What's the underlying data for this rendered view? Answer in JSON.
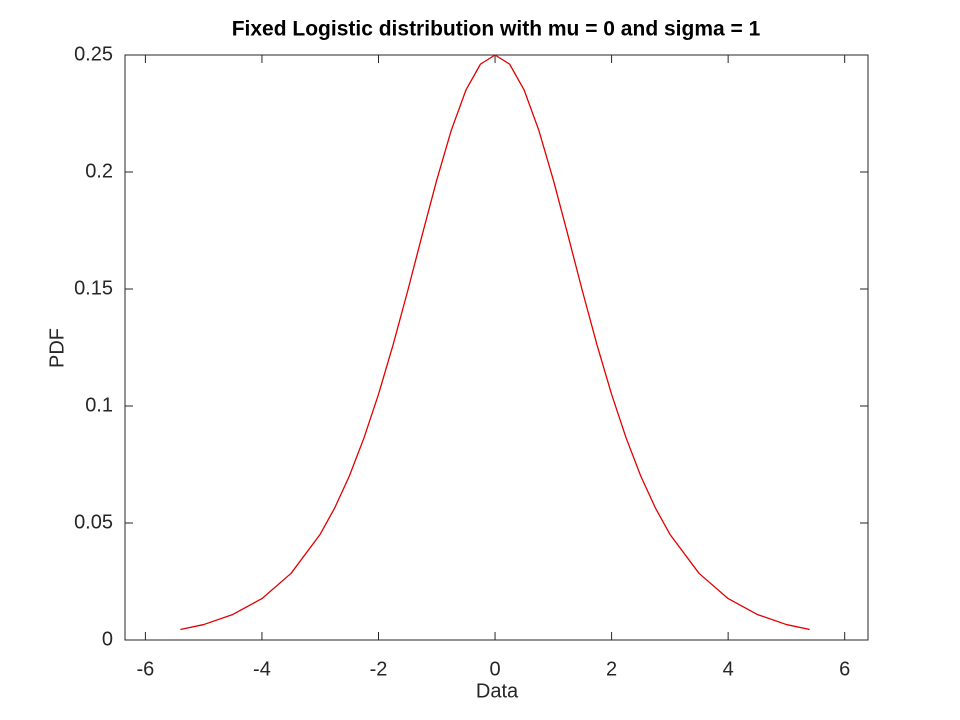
{
  "chart_data": {
    "type": "line",
    "title": "Fixed Logistic distribution with mu = 0 and sigma = 1",
    "xlabel": "Data",
    "ylabel": "PDF",
    "x": [
      -5.4,
      -5,
      -4.5,
      -4,
      -3.5,
      -3,
      -2.75,
      -2.5,
      -2.25,
      -2,
      -1.75,
      -1.5,
      -1.25,
      -1,
      -0.75,
      -0.5,
      -0.25,
      0,
      0.25,
      0.5,
      0.75,
      1,
      1.25,
      1.5,
      1.75,
      2,
      2.25,
      2.5,
      2.75,
      3,
      3.5,
      4,
      4.5,
      5,
      5.4
    ],
    "series": [
      {
        "name": "PDF",
        "color": "#e00000",
        "values": [
          0.0045,
          0.0066,
          0.0109,
          0.0177,
          0.0285,
          0.0452,
          0.0565,
          0.0701,
          0.0863,
          0.105,
          0.1261,
          0.1491,
          0.1731,
          0.1966,
          0.2179,
          0.235,
          0.2461,
          0.25,
          0.2461,
          0.235,
          0.2179,
          0.1966,
          0.1731,
          0.1491,
          0.1261,
          0.105,
          0.0863,
          0.0701,
          0.0565,
          0.0452,
          0.0285,
          0.0177,
          0.0109,
          0.0066,
          0.0045
        ]
      }
    ],
    "xlim": [
      -6.35,
      6.4
    ],
    "ylim": [
      0,
      0.25
    ],
    "xticks": [
      -6,
      -4,
      -2,
      0,
      2,
      4,
      6
    ],
    "yticks": [
      0,
      0.05,
      0.1,
      0.15,
      0.2,
      0.25
    ]
  }
}
